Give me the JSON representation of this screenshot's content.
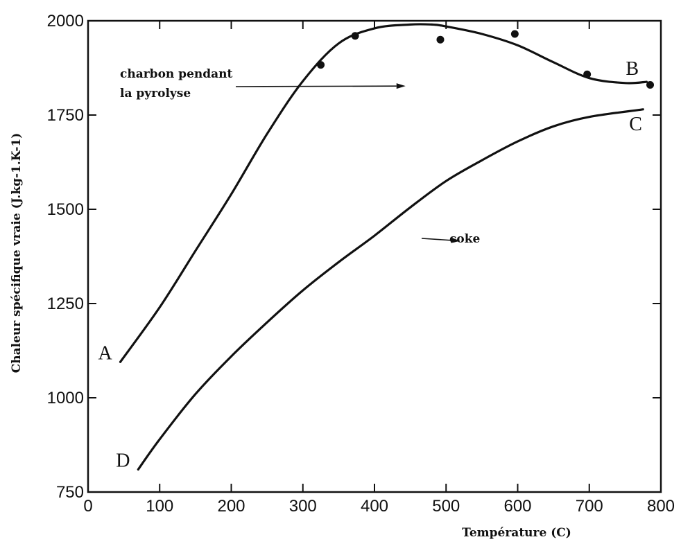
{
  "chart_data": {
    "type": "line",
    "xlabel": "Température (C)",
    "ylabel": "Chaleur spécifique vraie (J.kg-1.K-1)",
    "xlim": [
      0,
      800
    ],
    "ylim": [
      750,
      2000
    ],
    "x_ticks": [
      0,
      100,
      200,
      300,
      400,
      500,
      600,
      700,
      800
    ],
    "y_ticks": [
      750,
      1000,
      1250,
      1500,
      1750,
      2000
    ],
    "grid": false,
    "series": [
      {
        "name": "charbon pendant la pyrolyse",
        "start_label": "A",
        "end_label": "B",
        "x": [
          45,
          100,
          150,
          200,
          250,
          300,
          350,
          400,
          450,
          480,
          500,
          550,
          600,
          650,
          700,
          750,
          780
        ],
        "values": [
          1095,
          1240,
          1390,
          1540,
          1700,
          1840,
          1940,
          1980,
          1990,
          1990,
          1985,
          1965,
          1935,
          1890,
          1848,
          1835,
          1838
        ],
        "points_x": [
          325,
          373,
          492,
          596,
          697,
          785
        ],
        "points_y": [
          1883,
          1960,
          1950,
          1965,
          1858,
          1830
        ]
      },
      {
        "name": "coke",
        "start_label": "D",
        "end_label": "C",
        "x": [
          70,
          100,
          150,
          200,
          250,
          300,
          350,
          400,
          450,
          500,
          550,
          600,
          650,
          700,
          775
        ],
        "values": [
          810,
          890,
          1010,
          1110,
          1200,
          1285,
          1360,
          1430,
          1505,
          1575,
          1630,
          1680,
          1720,
          1745,
          1765
        ]
      }
    ],
    "annotations": [
      {
        "text_lines": [
          "charbon pendant",
          "la pyrolyse"
        ],
        "arrow_to_x": 300,
        "arrow_to_y": 1827
      },
      {
        "text": "coke",
        "arrow_to_x": 384,
        "arrow_to_y": 1418
      }
    ]
  }
}
